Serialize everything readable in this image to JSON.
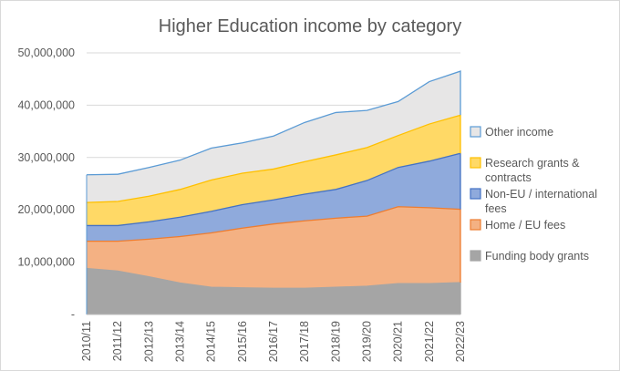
{
  "chart_data": {
    "type": "area",
    "stacked": true,
    "title": "Higher Education income by category",
    "xlabel": "",
    "ylabel": "",
    "categories": [
      "2010/11",
      "2011/12",
      "2012/13",
      "2013/14",
      "2014/15",
      "2015/16",
      "2016/17",
      "2017/18",
      "2018/19",
      "2019/20",
      "2020/21",
      "2021/22",
      "2022/23"
    ],
    "ylim": [
      0,
      50000000
    ],
    "yticks": [
      {
        "value": 0,
        "label": "-"
      },
      {
        "value": 10000000,
        "label": "10,000,000"
      },
      {
        "value": 20000000,
        "label": "20,000,000"
      },
      {
        "value": 30000000,
        "label": "30,000,000"
      },
      {
        "value": 40000000,
        "label": "40,000,000"
      },
      {
        "value": 50000000,
        "label": "50,000,000"
      }
    ],
    "grid": true,
    "legend_position": "right",
    "series": [
      {
        "name": "Funding body grants",
        "color": "#a5a5a5",
        "line": "#a5a5a5",
        "values": [
          8800000,
          8300000,
          7200000,
          6000000,
          5200000,
          5100000,
          5000000,
          5000000,
          5200000,
          5400000,
          5900000,
          5900000,
          6100000
        ]
      },
      {
        "name": "Home / EU fees",
        "color": "#f4b183",
        "line": "#ed7d31",
        "values": [
          5200000,
          5700000,
          7200000,
          8900000,
          10400000,
          11400000,
          12300000,
          12900000,
          13200000,
          13400000,
          14700000,
          14500000,
          14000000
        ]
      },
      {
        "name": "Non-EU / international fees",
        "color": "#8faadc",
        "line": "#4472c4",
        "values": [
          3000000,
          3000000,
          3300000,
          3700000,
          4100000,
          4500000,
          4600000,
          5100000,
          5500000,
          6800000,
          7500000,
          8900000,
          10700000
        ]
      },
      {
        "name": "Research grants & contracts",
        "color": "#ffd966",
        "line": "#ffc000",
        "values": [
          4400000,
          4600000,
          4900000,
          5300000,
          6000000,
          6000000,
          5900000,
          6200000,
          6600000,
          6300000,
          6100000,
          7100000,
          7300000
        ]
      },
      {
        "name": "Other income",
        "color": "#e7e6e6",
        "line": "#5b9bd5",
        "values": [
          5300000,
          5200000,
          5500000,
          5600000,
          6100000,
          5800000,
          6300000,
          7500000,
          8100000,
          7100000,
          6500000,
          8100000,
          8400000
        ]
      }
    ]
  }
}
